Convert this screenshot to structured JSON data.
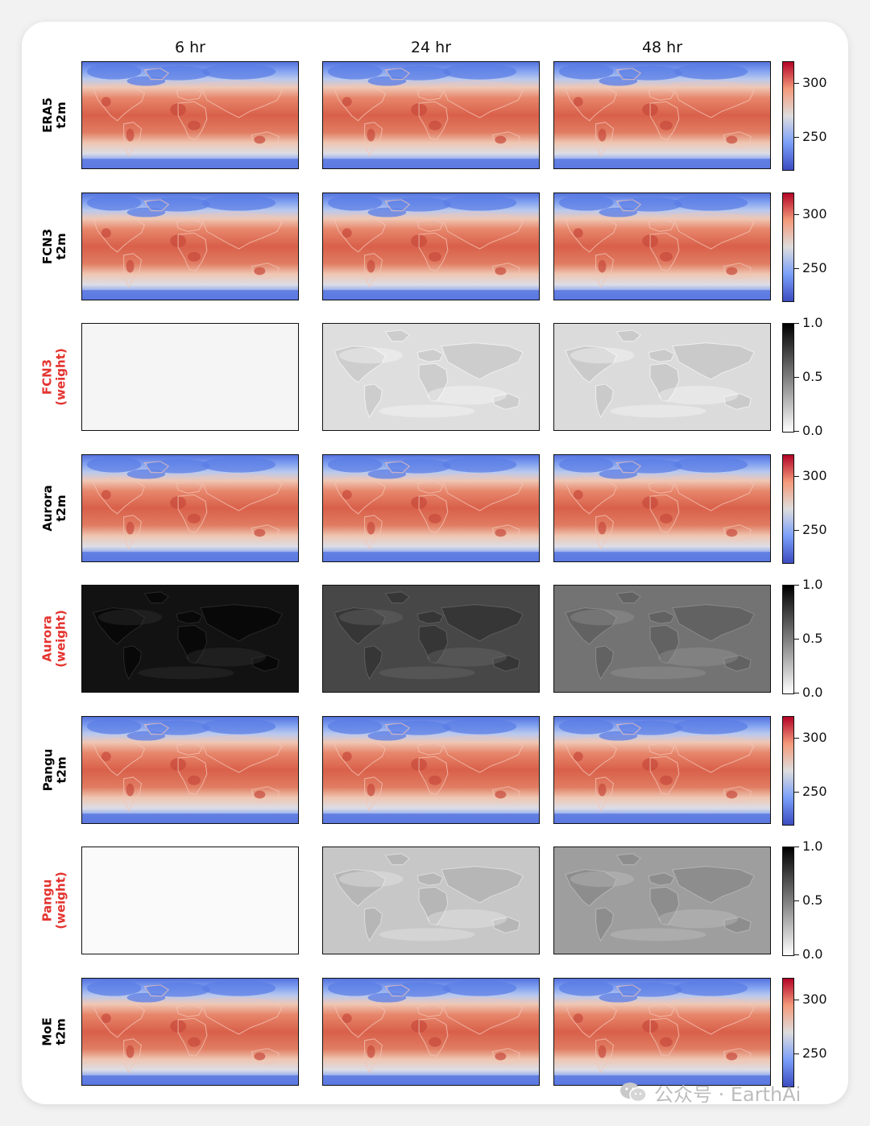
{
  "columns": [
    "6 hr",
    "24 hr",
    "48 hr"
  ],
  "rows": [
    {
      "label": [
        "ERA5",
        "t2m"
      ],
      "kind": "temp",
      "label_color": "black",
      "intensity": [
        0,
        0,
        0
      ]
    },
    {
      "label": [
        "FCN3",
        "t2m"
      ],
      "kind": "temp",
      "label_color": "black",
      "intensity": [
        0,
        0,
        0
      ]
    },
    {
      "label": [
        "FCN3",
        "(weight)"
      ],
      "kind": "weight",
      "label_color": "red",
      "intensity": [
        0.04,
        0.13,
        0.14
      ]
    },
    {
      "label": [
        "Aurora",
        "t2m"
      ],
      "kind": "temp",
      "label_color": "black",
      "intensity": [
        0,
        0,
        0
      ]
    },
    {
      "label": [
        "Aurora",
        "(weight)"
      ],
      "kind": "weight",
      "label_color": "red",
      "intensity": [
        0.93,
        0.72,
        0.55
      ]
    },
    {
      "label": [
        "Pangu",
        "t2m"
      ],
      "kind": "temp",
      "label_color": "black",
      "intensity": [
        0,
        0,
        0
      ]
    },
    {
      "label": [
        "Pangu",
        "(weight)"
      ],
      "kind": "weight",
      "label_color": "red",
      "intensity": [
        0.02,
        0.22,
        0.38
      ]
    },
    {
      "label": [
        "MoE",
        "t2m"
      ],
      "kind": "temp",
      "label_color": "black",
      "intensity": [
        0,
        0,
        0
      ]
    }
  ],
  "colorbars": {
    "temp": {
      "range": [
        220,
        320
      ],
      "ticks": [
        "300",
        "250"
      ],
      "tick_values": [
        300,
        250
      ],
      "colormap": "coolwarm"
    },
    "weight": {
      "range": [
        0,
        1
      ],
      "ticks": [
        "1.0",
        "0.5",
        "0.0"
      ],
      "tick_values": [
        1.0,
        0.5,
        0.0
      ],
      "colormap": "gray_r"
    }
  },
  "colors": {
    "cold": "#5b7de6",
    "mid": "#e8c4b4",
    "warm": "#d9604a",
    "hot": "#c8483a",
    "label_red": "#e3342f"
  },
  "watermark": {
    "icon": "wechat-icon",
    "text": "公众号 · EarthAi"
  },
  "chart_data": {
    "type": "heatmap",
    "title": "",
    "columns": [
      "6 hr",
      "24 hr",
      "48 hr"
    ],
    "rows": [
      "ERA5 t2m",
      "FCN3 t2m",
      "FCN3 (weight)",
      "Aurora t2m",
      "Aurora (weight)",
      "Pangu t2m",
      "Pangu (weight)",
      "MoE t2m"
    ],
    "colorbar_temp": {
      "ticks": [
        250,
        300
      ]
    },
    "colorbar_weight": {
      "ticks": [
        0.0,
        0.5,
        1.0
      ],
      "range": [
        0,
        1
      ]
    }
  }
}
